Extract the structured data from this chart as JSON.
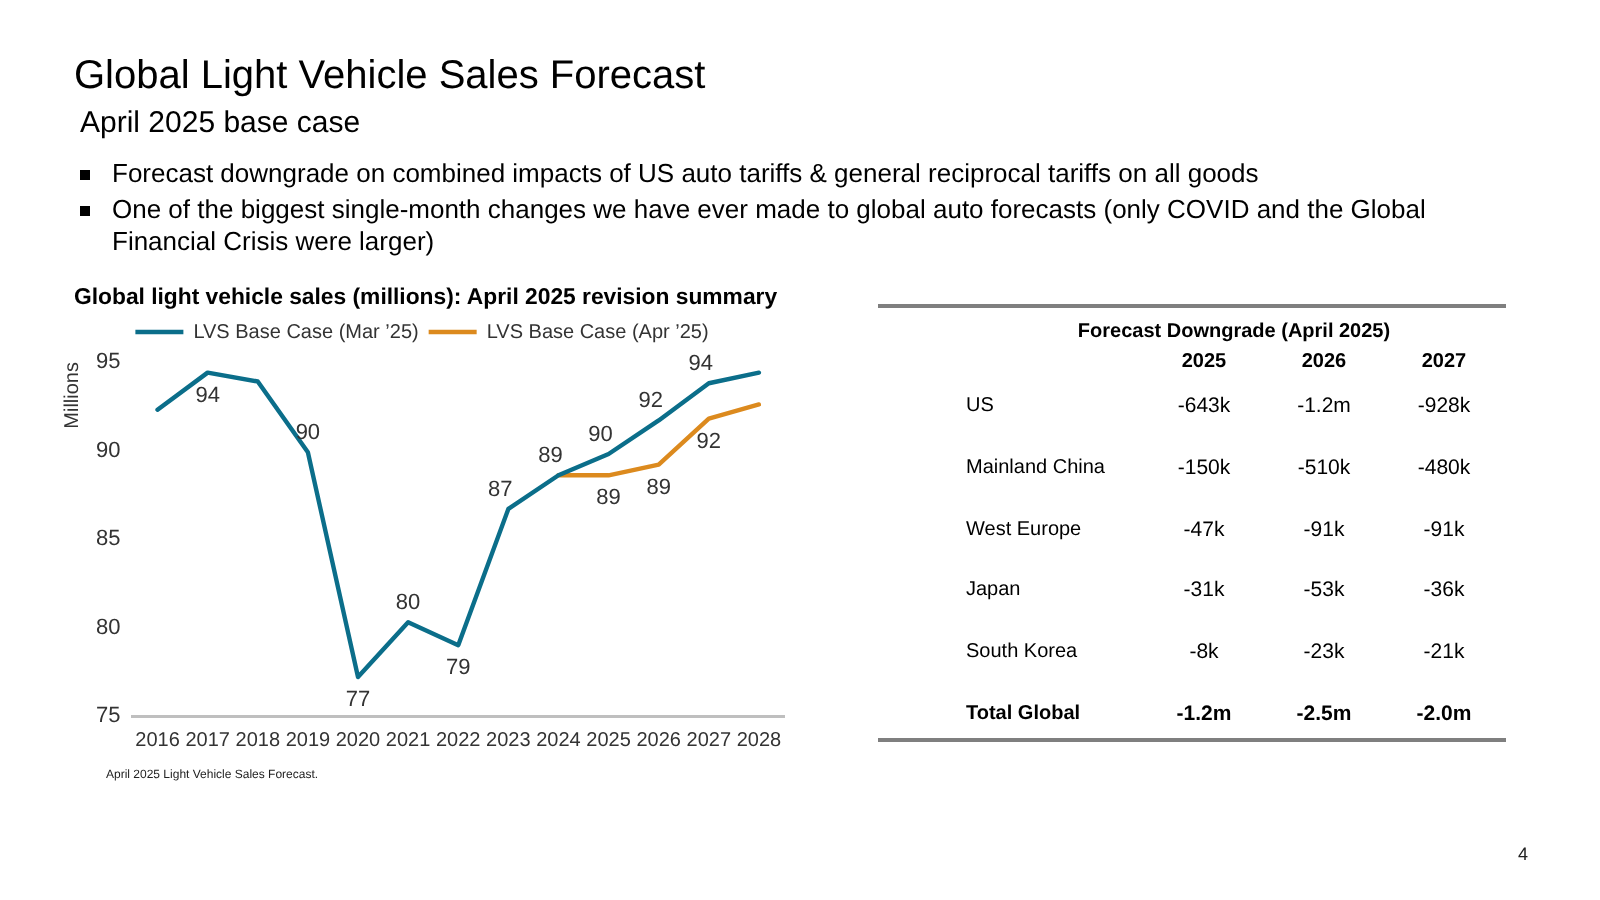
{
  "chart_data": [
    {
      "type": "line",
      "title": "Global Light Vehicle Sales Forecast",
      "subtitle": "April 2025 base case",
      "annotations": [
        "Forecast downgrade on combined impacts of US auto tariffs & general reciprocal tariffs on all goods",
        "One of the biggest single-month changes we have ever made to global auto forecasts (only COVID and the Global Financial Crisis were larger)",
        "Global light vehicle sales (millions): April 2025 revision summary",
        "April 2025 Light Vehicle Sales Forecast.",
        "4"
      ],
      "categories": [
        "2016",
        "2017",
        "2018",
        "2019",
        "2020",
        "2021",
        "2022",
        "2023",
        "2024",
        "2025",
        "2026",
        "2027",
        "2028"
      ],
      "ylabel": "Millions",
      "ylim": [
        75,
        95
      ],
      "yticks": [
        75,
        80,
        85,
        90,
        95
      ],
      "grid": false,
      "legend": "top",
      "marker": "none",
      "series": [
        {
          "name": "LVS Base Case (Mar ’25)",
          "color": "#0b6e8a",
          "values": [
            92.3,
            94.4,
            93.9,
            89.9,
            77.2,
            80.3,
            79.0,
            86.7,
            88.6,
            89.8,
            91.7,
            93.8,
            94.4
          ],
          "value_labels": [
            null,
            "94",
            null,
            "90",
            "77",
            "80",
            "79",
            "87",
            "89",
            "90",
            "92",
            "94",
            null
          ]
        },
        {
          "name": "LVS Base Case (Apr ’25)",
          "color": "#dc8a1e",
          "values": [
            null,
            null,
            null,
            null,
            null,
            null,
            null,
            null,
            88.6,
            88.6,
            89.2,
            91.8,
            92.6
          ],
          "value_labels": [
            null,
            null,
            null,
            null,
            null,
            null,
            null,
            null,
            null,
            "89",
            "89",
            "92",
            null
          ]
        }
      ]
    },
    {
      "type": "other",
      "title": "Forecast Downgrade (April 2025)",
      "categories": [
        "2025",
        "2026",
        "2027"
      ],
      "y_categories": [
        "US",
        "Mainland China",
        "West Europe",
        "Japan",
        "South Korea",
        "Total Global"
      ],
      "cell_labels": [
        [
          "-643k",
          "-1.2m",
          "-928k"
        ],
        [
          "-150k",
          "-510k",
          "-480k"
        ],
        [
          "-47k",
          "-91k",
          "-91k"
        ],
        [
          "-31k",
          "-53k",
          "-36k"
        ],
        [
          "-8k",
          "-23k",
          "-21k"
        ],
        [
          "-1.2m",
          "-2.5m",
          "-2.0m"
        ]
      ]
    }
  ]
}
